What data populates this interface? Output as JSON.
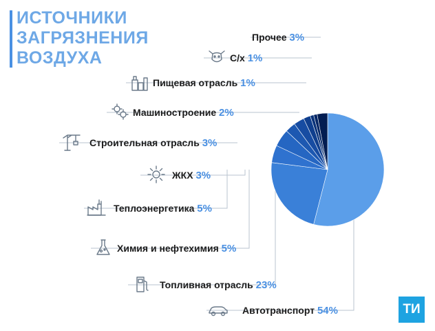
{
  "title_lines": [
    "ИСТОЧНИКИ",
    "ЗАГРЯЗНЕНИЯ",
    "ВОЗДУХА"
  ],
  "logo_text": "ТИ",
  "chart_data": {
    "type": "pie",
    "title": "ИСТОЧНИКИ ЗАГРЯЗНЕНИЯ ВОЗДУХА",
    "unit": "%",
    "categories": [
      "Автотранспорт",
      "Топливная отрасль",
      "Химия и нефтехимия",
      "Теплоэнергетика",
      "ЖКХ",
      "Строительная отрасль",
      "Машиностроение",
      "Пищевая отрасль",
      "С/х",
      "Прочее"
    ],
    "values": [
      54,
      23,
      5,
      5,
      3,
      3,
      2,
      1,
      1,
      3
    ],
    "colors": [
      "#5b9ee9",
      "#3a80d8",
      "#2f72cf",
      "#2566c2",
      "#1d58b1",
      "#174ca2",
      "#103f8e",
      "#0a337a",
      "#052766",
      "#021d52"
    ],
    "icons": [
      "car-icon",
      "fuel-pump-icon",
      "flask-icon",
      "factory-icon",
      "gear-icon",
      "crane-icon",
      "gears-icon",
      "food-icon",
      "cow-icon",
      ""
    ],
    "legend_placement": "left"
  }
}
